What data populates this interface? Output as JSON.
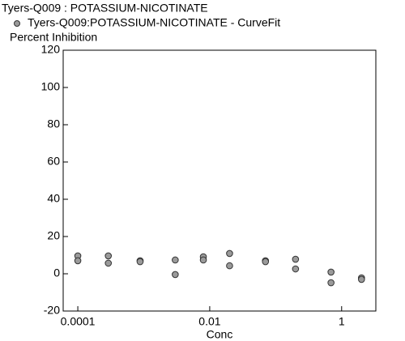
{
  "chart_data": {
    "type": "scatter",
    "title": "Tyers-Q009  :  POTASSIUM-NICOTINATE",
    "y_label": "Percent Inhibition",
    "x_label": "Conc",
    "x_scale": "log",
    "x": [
      0.0001,
      0.0001,
      0.00029,
      0.00029,
      0.00088,
      0.00088,
      0.003,
      0.003,
      0.008,
      0.008,
      0.02,
      0.02,
      0.07,
      0.07,
      0.2,
      0.2,
      0.69,
      0.69,
      2,
      2
    ],
    "series": [
      {
        "name": "Tyers-Q009:POTASSIUM-NICOTINATE - CurveFit",
        "color": "#9a9a9a",
        "values": [
          9.6,
          7,
          9.6,
          5.7,
          7,
          6.5,
          7.4,
          -0.4,
          9.1,
          7.4,
          10.9,
          4.3,
          7,
          6.5,
          7.8,
          2.6,
          0.9,
          -4.8,
          -2.2,
          -3
        ]
      }
    ],
    "xlim": [
      6e-05,
      3.3
    ],
    "xticks": [
      0.0001,
      0.01,
      1
    ],
    "ylim": [
      -20,
      120
    ],
    "yticks": [
      -20,
      0,
      20,
      40,
      60,
      80,
      100,
      120
    ]
  }
}
